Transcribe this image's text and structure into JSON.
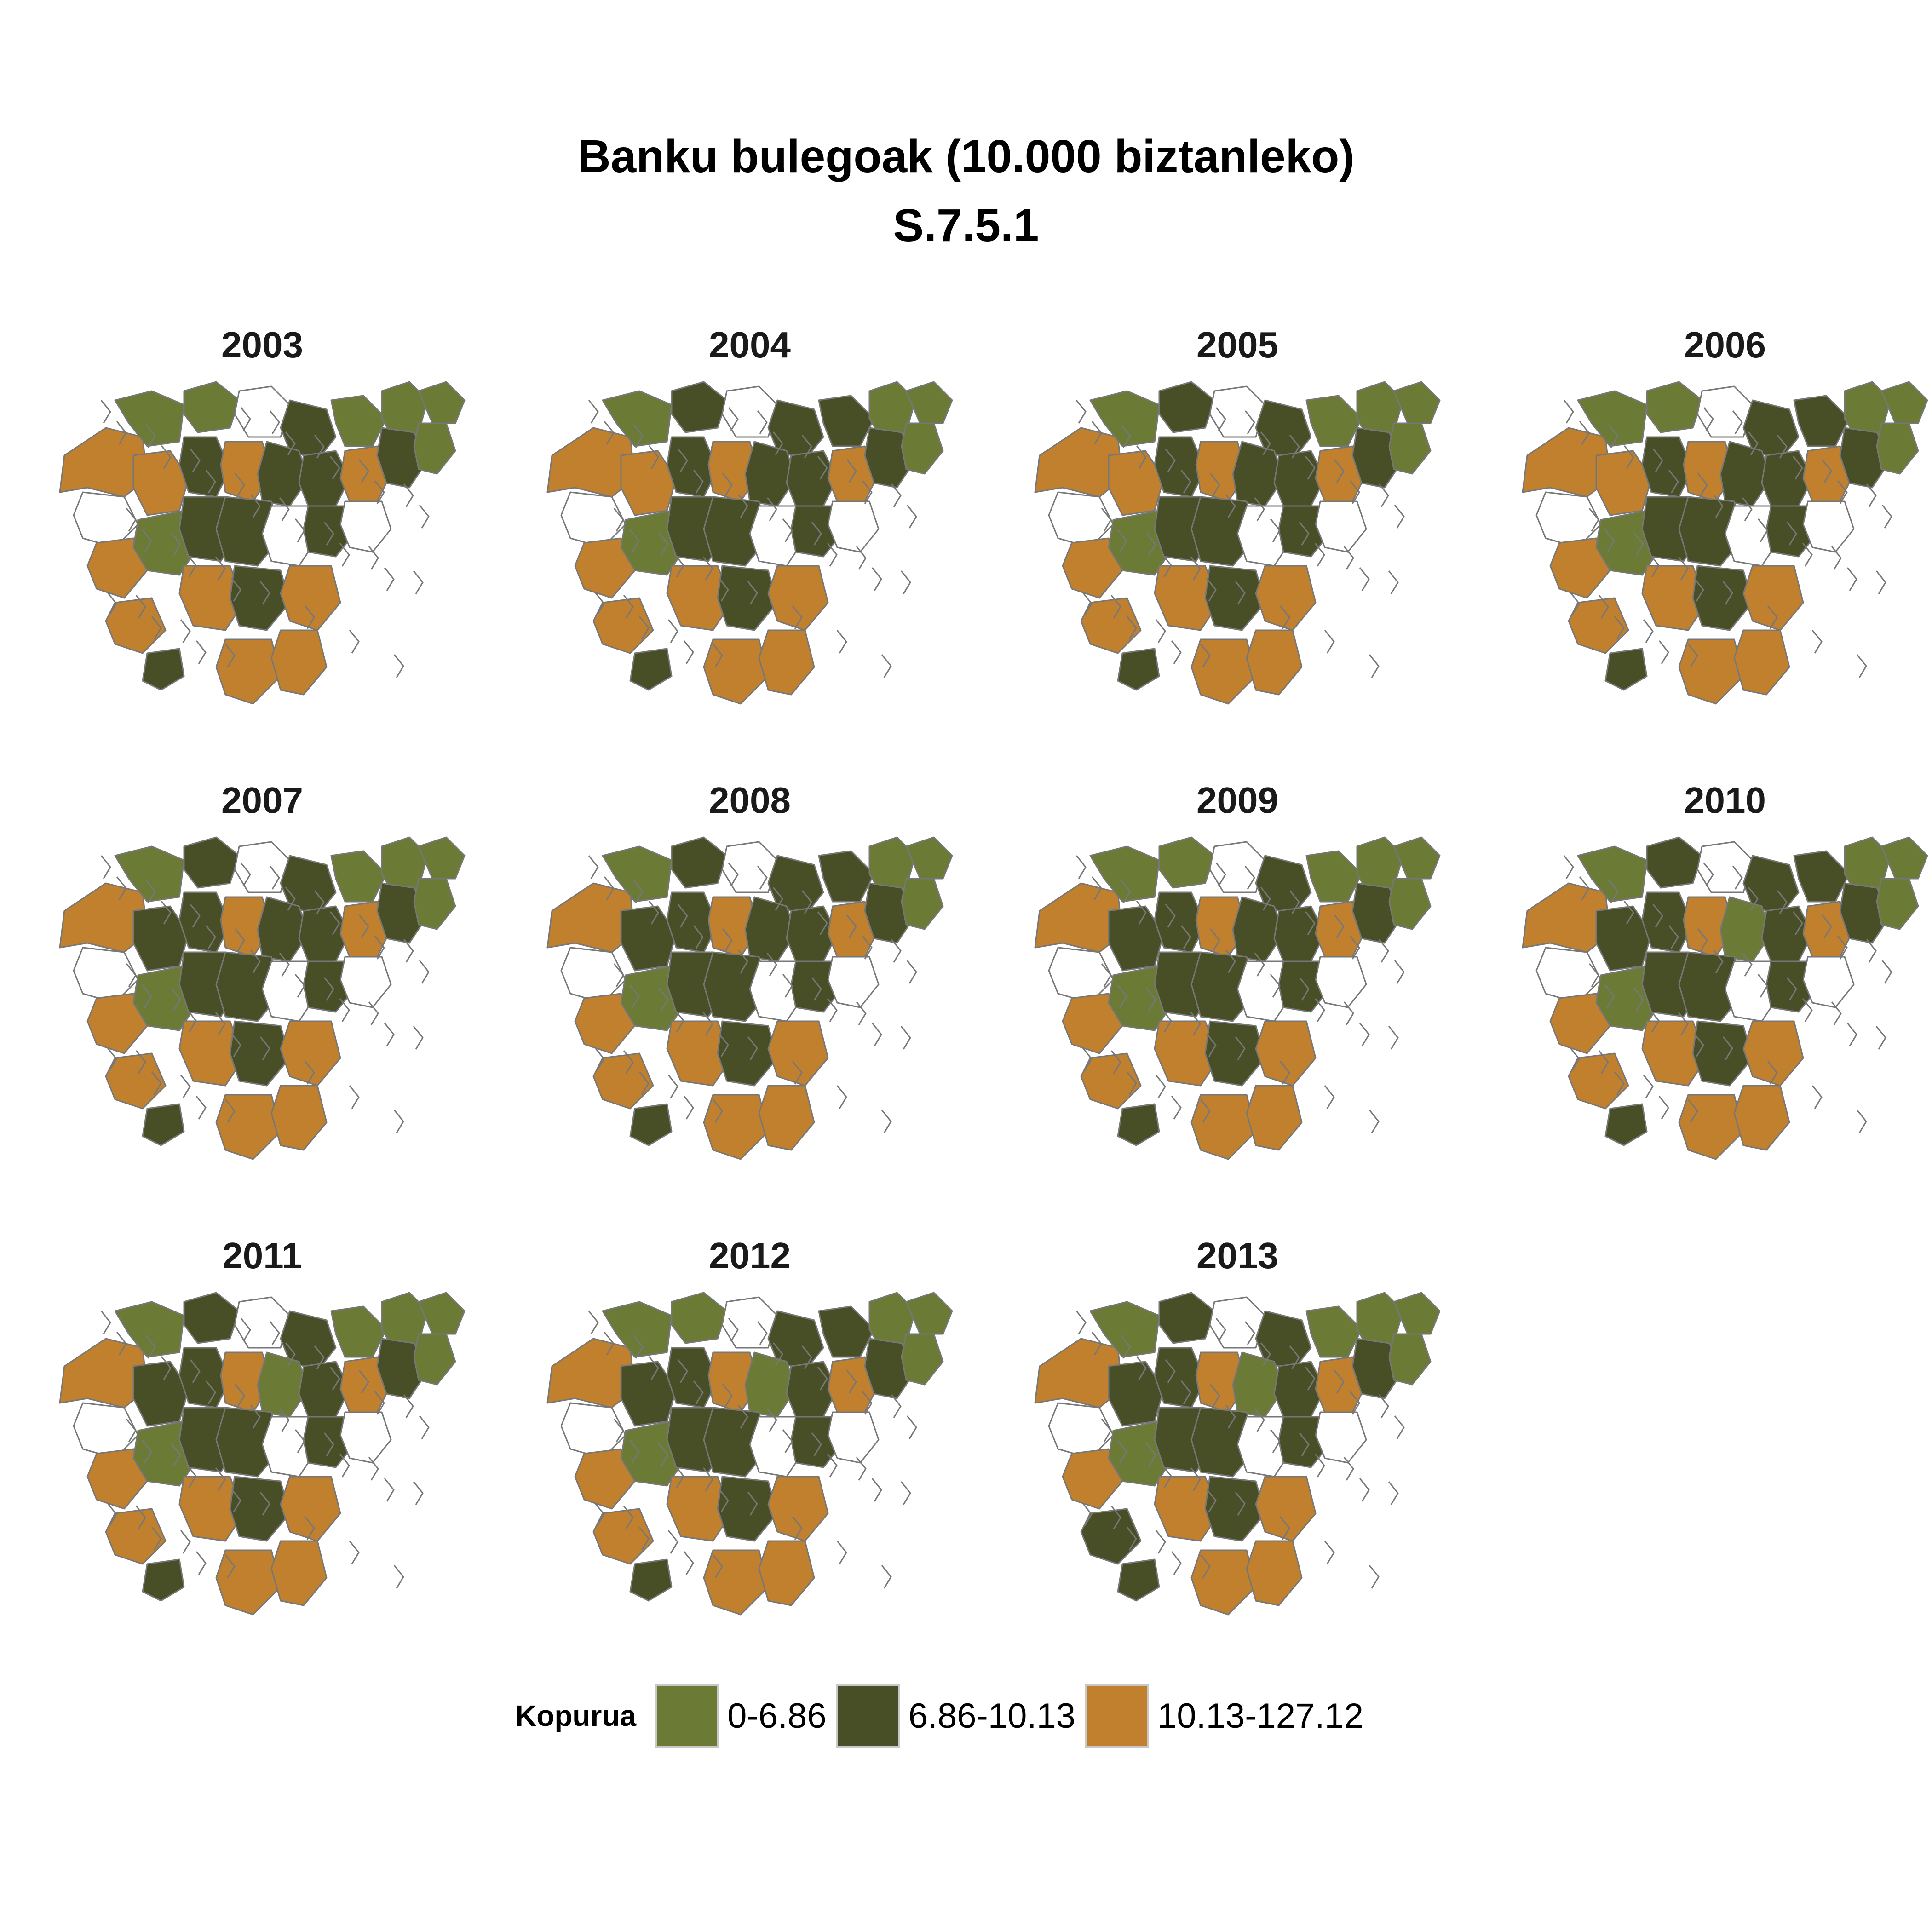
{
  "title": {
    "line1": "Banku bulegoak (10.000 biztanleko)",
    "line2": "S.7.5.1"
  },
  "colors": {
    "low": "#6b7a35",
    "mid": "#484e25",
    "high": "#c1802e",
    "none": "#ffffff",
    "border": "#777777"
  },
  "legend": {
    "title": "Kopurua",
    "items": [
      {
        "label": "0-6.86",
        "color": "#6b7a35"
      },
      {
        "label": "6.86-10.13",
        "color": "#484e25"
      },
      {
        "label": "10.13-127.12",
        "color": "#c1802e"
      }
    ]
  },
  "panels": [
    {
      "year": "2003"
    },
    {
      "year": "2004"
    },
    {
      "year": "2005"
    },
    {
      "year": "2006"
    },
    {
      "year": "2007"
    },
    {
      "year": "2008"
    },
    {
      "year": "2009"
    },
    {
      "year": "2010"
    },
    {
      "year": "2011"
    },
    {
      "year": "2012"
    },
    {
      "year": "2013"
    }
  ]
}
